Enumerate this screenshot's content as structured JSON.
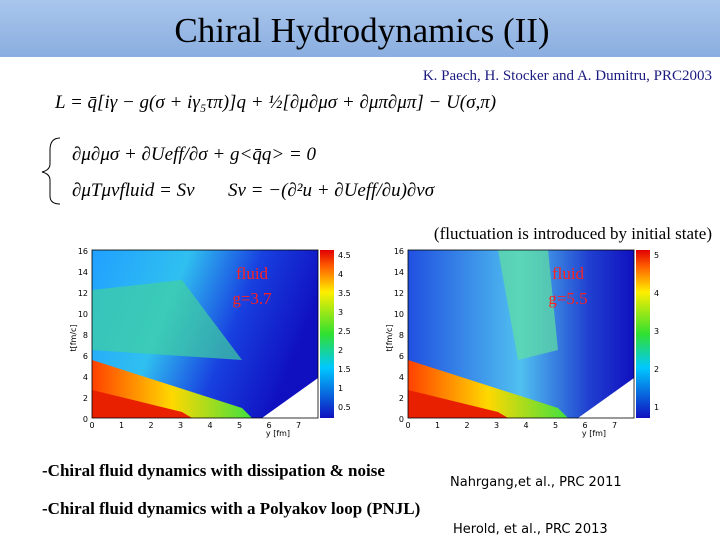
{
  "header": {
    "title": "Chiral Hydrodynamics (II)"
  },
  "citation": "K. Paech, H. Stocker and A. Dumitru, PRC2003",
  "equations": {
    "lagrangian": "L = q̄[iγ − g(σ + iγ₅τπ)]q + ½[∂μ∂μσ + ∂μπ∂μπ] − U(σ,π)",
    "field": "∂μ∂μσ + ∂Ueff/∂σ + g<q̄q> = 0",
    "fluid": "∂μTμνfluid = Sν",
    "source": "Sν = −(∂²u + ∂Ueff/∂u)∂νσ"
  },
  "note": "(fluctuation is introduced by initial state)",
  "panels": [
    {
      "label": "fluid",
      "coupling": "g=3.7",
      "xlabel": "y [fm]",
      "ylabel": "t[fm/c]",
      "xticks": [
        0,
        1,
        2,
        3,
        4,
        5,
        6,
        7
      ],
      "yticks": [
        16,
        14,
        12,
        10,
        8,
        6,
        4,
        2,
        0
      ],
      "cticks": [
        4.5,
        4,
        3.5,
        3,
        2.5,
        2,
        1.5,
        1,
        0.5
      ]
    },
    {
      "label": "fluid",
      "coupling": "g=5.5",
      "xlabel": "y [fm]",
      "ylabel": "t[fm/c]",
      "xticks": [
        0,
        1,
        2,
        3,
        4,
        5,
        6,
        7
      ],
      "yticks": [
        16,
        14,
        12,
        10,
        8,
        6,
        4,
        2,
        0
      ],
      "cticks": [
        5,
        4,
        3,
        2,
        1
      ]
    }
  ],
  "bullets": [
    {
      "text": "-Chiral fluid dynamics with dissipation & noise",
      "ref": "Nahrgang,et al.,  PRC 2011"
    },
    {
      "text": "-Chiral fluid dynamics with a Polyakov loop (PNJL)",
      "ref": "Herold, et al., PRC 2013"
    }
  ]
}
